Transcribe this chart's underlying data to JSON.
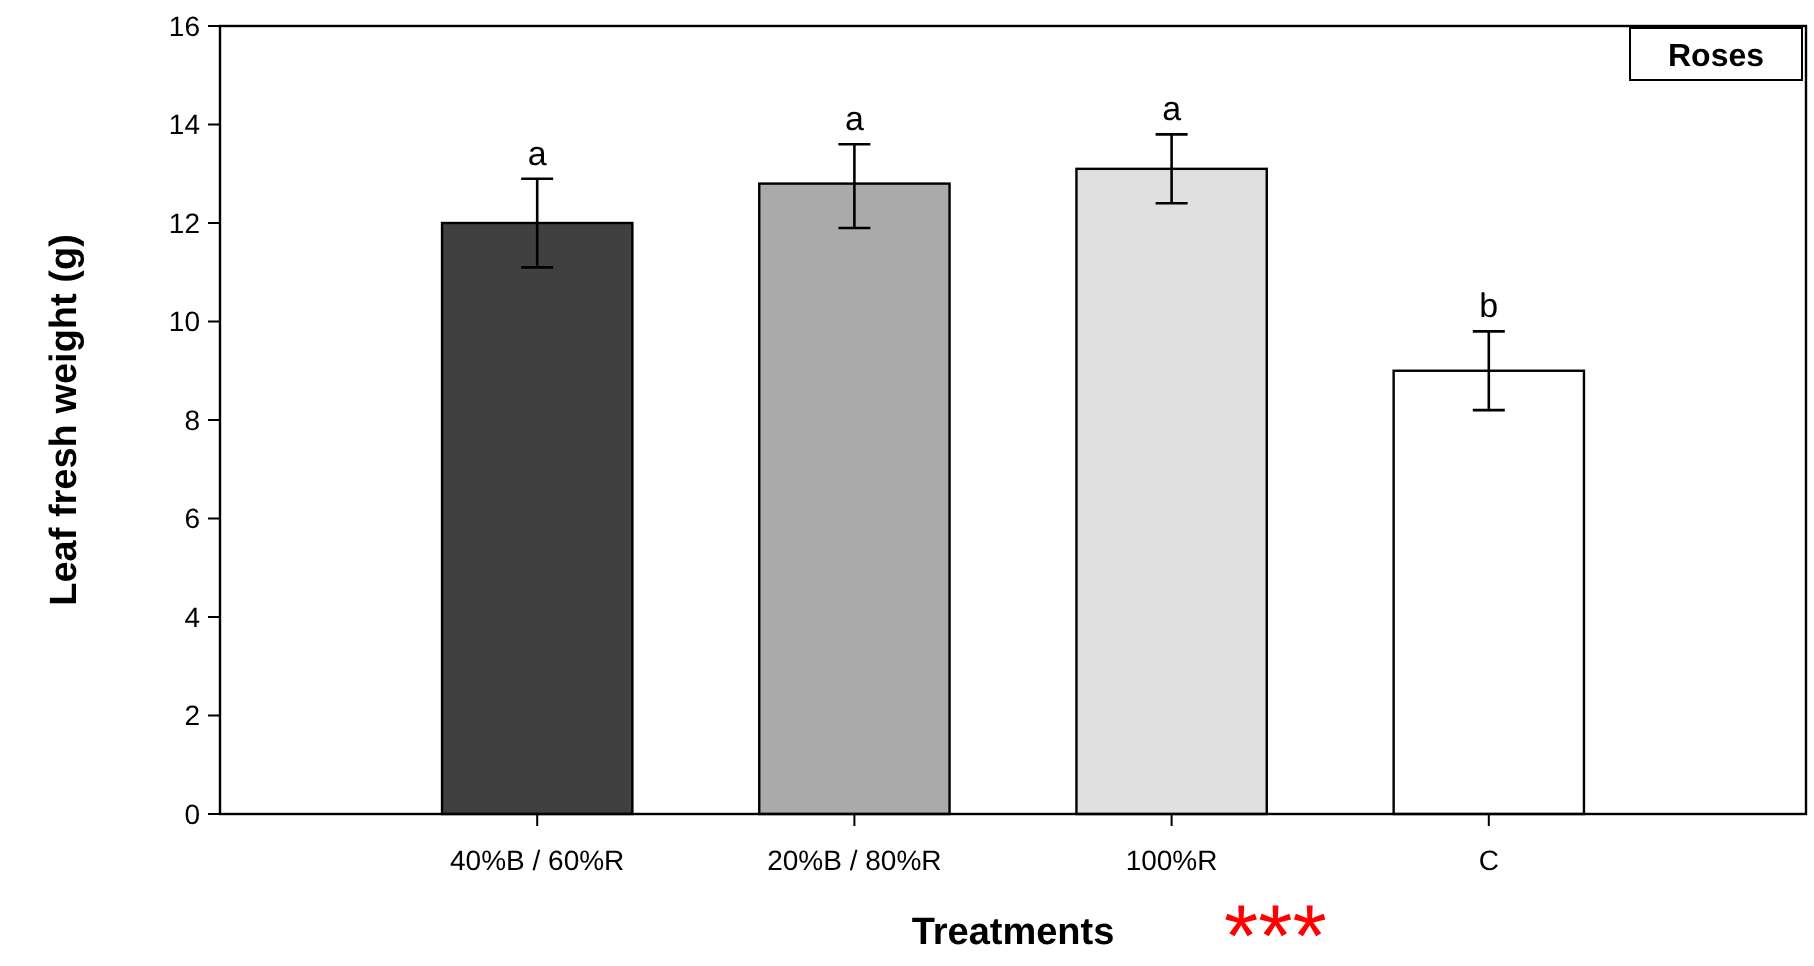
{
  "chart_data": {
    "type": "bar",
    "xlabel": "Treatments",
    "ylabel": "Leaf fresh weight (g)",
    "categories": [
      "40%B / 60%R",
      "20%B / 80%R",
      "100%R",
      "C"
    ],
    "values": [
      12.0,
      12.8,
      13.1,
      9.0
    ],
    "colors": [
      "#404040",
      "#aaaaaa",
      "#e0e0e0",
      "#ffffff"
    ],
    "errors": [
      [
        11.1,
        12.9
      ],
      [
        11.9,
        13.6
      ],
      [
        12.4,
        13.8
      ],
      [
        8.2,
        9.8
      ]
    ],
    "ylim": [
      0,
      16
    ],
    "yticks": [
      0,
      2,
      4,
      6,
      8,
      10,
      12,
      14,
      16
    ],
    "grid": false,
    "annotations": [
      {
        "text": "a",
        "x": "40%B / 60%R",
        "y": 12.9
      },
      {
        "text": "a",
        "x": "20%B / 80%R",
        "y": 13.6
      },
      {
        "text": "a",
        "x": "100%R",
        "y": 13.8
      },
      {
        "text": "b",
        "x": "C",
        "y": 9.8
      },
      "Roses",
      "***"
    ]
  }
}
